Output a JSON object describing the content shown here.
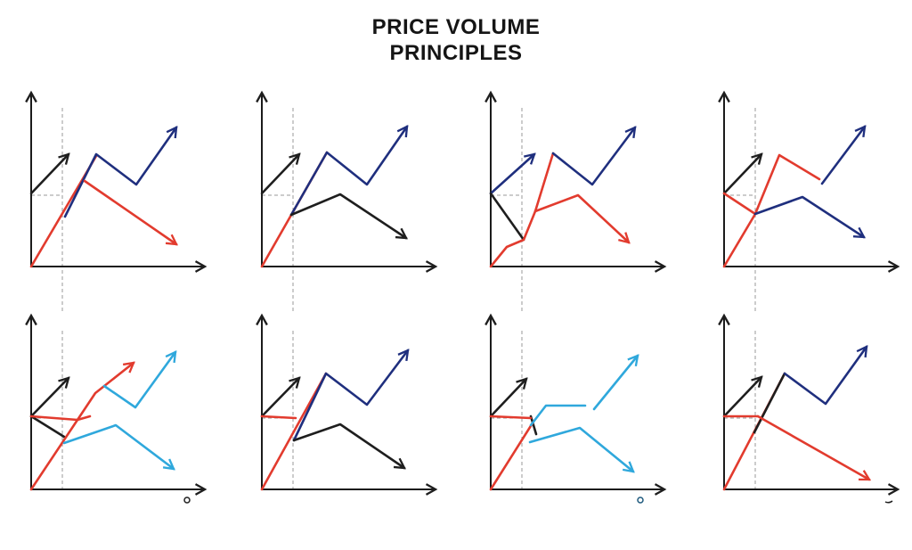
{
  "title": {
    "line1": "PRICE VOLUME",
    "line2": "PRINCIPLES"
  },
  "colors": {
    "axis": "#1b1b1b",
    "guide": "#9a9a9a",
    "black": "#1e1e1e",
    "navy": "#1f2f7e",
    "red": "#e23b2e",
    "darkred": "#b52a24",
    "cyan": "#2fa8dc"
  },
  "panels": [
    {
      "name": "panel-row1-col1"
    },
    {
      "name": "panel-row1-col2"
    },
    {
      "name": "panel-row1-col3"
    },
    {
      "name": "panel-row1-col4"
    },
    {
      "name": "panel-row2-col1"
    },
    {
      "name": "panel-row2-col2"
    },
    {
      "name": "panel-row2-col3"
    },
    {
      "name": "panel-row2-col4"
    }
  ]
}
